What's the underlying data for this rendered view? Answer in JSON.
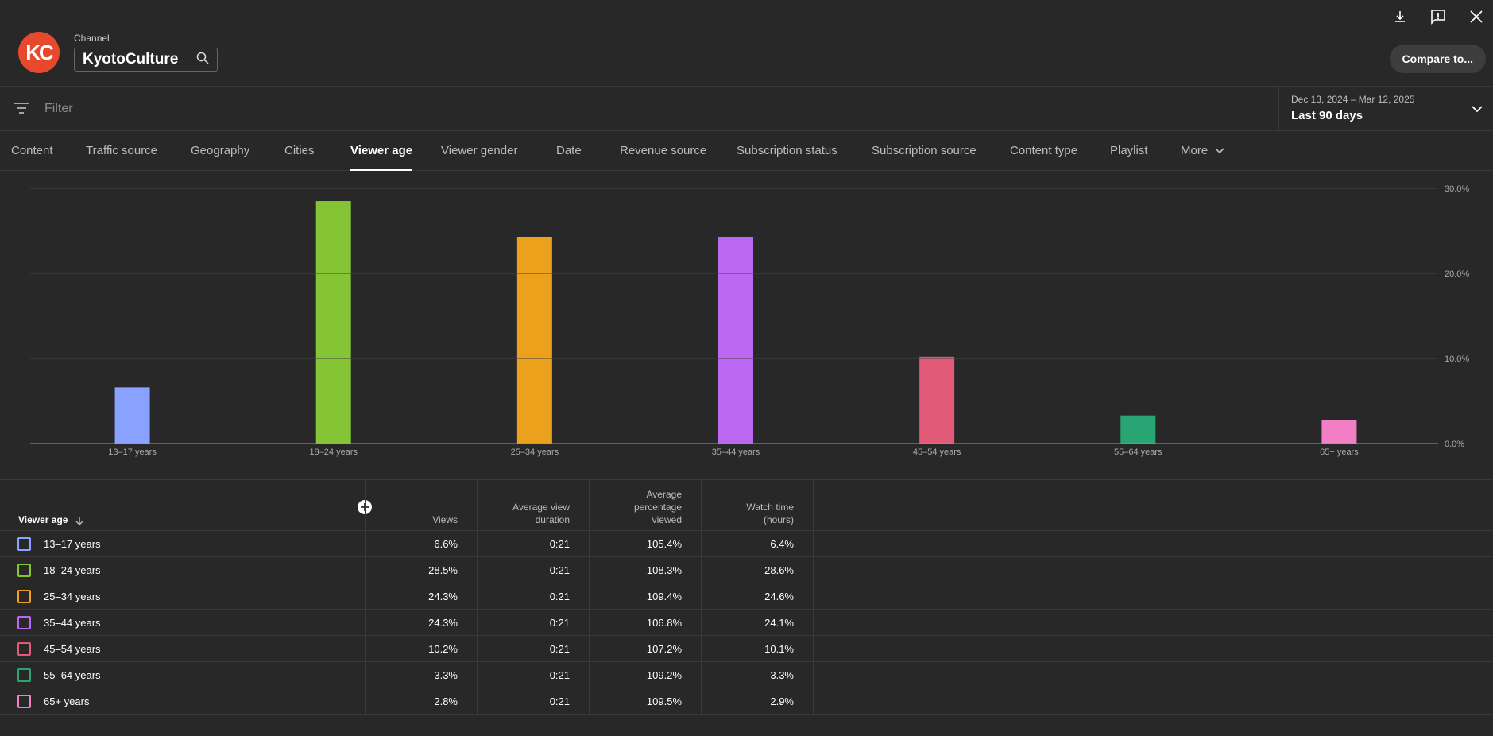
{
  "header": {
    "channel_label": "Channel",
    "channel_name": "KyotoCulture",
    "logo_text": "KC",
    "compare_label": "Compare to...",
    "icons": [
      "download-icon",
      "feedback-icon",
      "close-icon",
      "search-icon"
    ]
  },
  "filter": {
    "placeholder": "Filter",
    "date_range": "Dec 13, 2024 – Mar 12, 2025",
    "period": "Last 90 days"
  },
  "tabs": [
    {
      "label": "Content",
      "active": false
    },
    {
      "label": "Traffic source",
      "active": false
    },
    {
      "label": "Geography",
      "active": false
    },
    {
      "label": "Cities",
      "active": false
    },
    {
      "label": "Viewer age",
      "active": true
    },
    {
      "label": "Viewer gender",
      "active": false
    },
    {
      "label": "Date",
      "active": false
    },
    {
      "label": "Revenue source",
      "active": false
    },
    {
      "label": "Subscription status",
      "active": false
    },
    {
      "label": "Subscription source",
      "active": false
    },
    {
      "label": "Content type",
      "active": false
    },
    {
      "label": "Playlist",
      "active": false
    },
    {
      "label": "More",
      "active": false
    }
  ],
  "chart_data": {
    "type": "bar",
    "categories": [
      "13–17 years",
      "18–24 years",
      "25–34 years",
      "35–44 years",
      "45–54 years",
      "55–64 years",
      "65+ years"
    ],
    "values": [
      6.6,
      28.5,
      24.3,
      24.3,
      10.2,
      3.3,
      2.8
    ],
    "colors": [
      "#8aa2ff",
      "#84c435",
      "#eba11b",
      "#bb67f2",
      "#e15a78",
      "#28a573",
      "#f27fc4"
    ],
    "ylim": [
      0,
      30
    ],
    "yticks": [
      "0.0%",
      "10.0%",
      "20.0%",
      "30.0%"
    ],
    "ytick_values": [
      0,
      10,
      20,
      30
    ],
    "grid": true
  },
  "table": {
    "columns": {
      "first": "Viewer age",
      "views": "Views",
      "avg_duration_1": "Average view",
      "avg_duration_2": "duration",
      "avg_pct_1": "Average",
      "avg_pct_2": "percentage",
      "avg_pct_3": "viewed",
      "watch_1": "Watch time",
      "watch_2": "(hours)"
    },
    "rows": [
      {
        "label": "13–17 years",
        "views": "6.6%",
        "duration": "0:21",
        "pct": "105.4%",
        "watch": "6.4%",
        "color": "#8aa2ff"
      },
      {
        "label": "18–24 years",
        "views": "28.5%",
        "duration": "0:21",
        "pct": "108.3%",
        "watch": "28.6%",
        "color": "#84c435"
      },
      {
        "label": "25–34 years",
        "views": "24.3%",
        "duration": "0:21",
        "pct": "109.4%",
        "watch": "24.6%",
        "color": "#eba11b"
      },
      {
        "label": "35–44 years",
        "views": "24.3%",
        "duration": "0:21",
        "pct": "106.8%",
        "watch": "24.1%",
        "color": "#bb67f2"
      },
      {
        "label": "45–54 years",
        "views": "10.2%",
        "duration": "0:21",
        "pct": "107.2%",
        "watch": "10.1%",
        "color": "#e15a78"
      },
      {
        "label": "55–64 years",
        "views": "3.3%",
        "duration": "0:21",
        "pct": "109.2%",
        "watch": "3.3%",
        "color": "#28a573"
      },
      {
        "label": "65+ years",
        "views": "2.8%",
        "duration": "0:21",
        "pct": "109.5%",
        "watch": "2.9%",
        "color": "#f27fc4"
      }
    ]
  }
}
